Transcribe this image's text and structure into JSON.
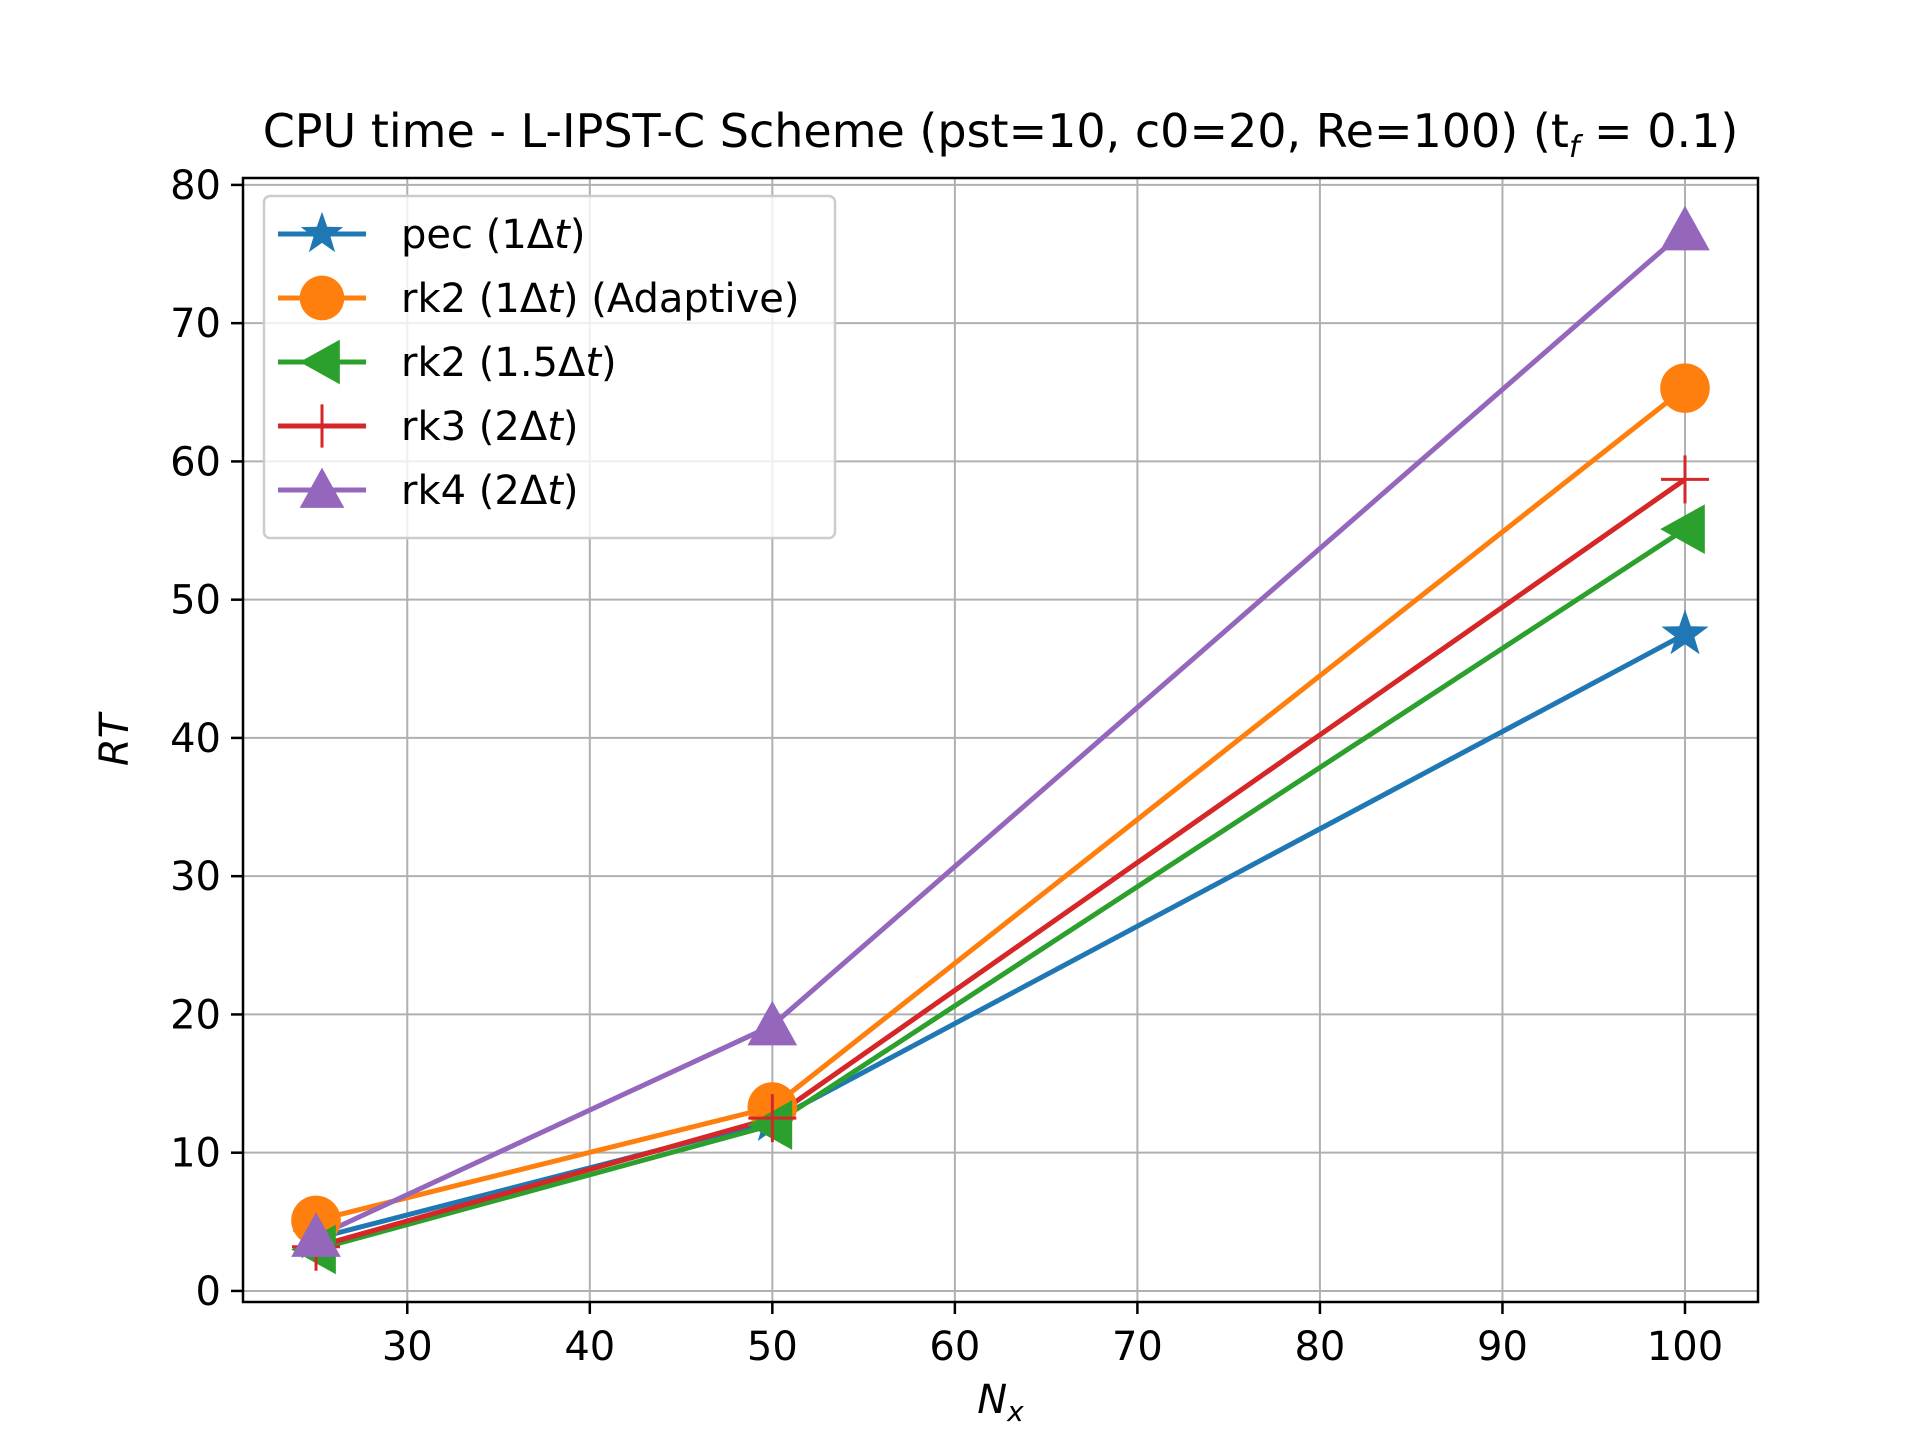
{
  "chart_data": {
    "type": "line",
    "title": "CPU time - L-IPST-C Scheme (pst=10, c0=20, Re=100) (t",
    "title_sub": "f",
    "title_tail": " = 0.1)",
    "xlabel": "N",
    "xlabel_sub": "x",
    "ylabel": "RT",
    "xlim": [
      21,
      104
    ],
    "ylim": [
      -0.8,
      80.5
    ],
    "xticks": [
      30,
      40,
      50,
      60,
      70,
      80,
      90,
      100
    ],
    "yticks": [
      0,
      10,
      20,
      30,
      40,
      50,
      60,
      70,
      80
    ],
    "grid": true,
    "legend_position": "upper-left",
    "x": [
      25,
      50,
      100
    ],
    "series": [
      {
        "name": "pec (1Δt)",
        "label_main": "pec (1Δ",
        "label_italic": "t",
        "label_tail": ")",
        "marker": "star",
        "color": "#1f77b4",
        "values": [
          3.8,
          12.3,
          47.5
        ]
      },
      {
        "name": "rk2 (1Δt) (Adaptive)",
        "label_main": "rk2 (1Δ",
        "label_italic": "t",
        "label_tail": ") (Adaptive)",
        "marker": "circle",
        "color": "#ff7f0e",
        "values": [
          5.1,
          13.3,
          65.3
        ]
      },
      {
        "name": "rk2 (1.5Δt)",
        "label_main": "rk2 (1.5Δ",
        "label_italic": "t",
        "label_tail": ")",
        "marker": "triangle-left",
        "color": "#2ca02c",
        "values": [
          3.0,
          12.0,
          55.1
        ]
      },
      {
        "name": "rk3 (2Δt)",
        "label_main": "rk3 (2Δ",
        "label_italic": "t",
        "label_tail": ")",
        "marker": "plus",
        "color": "#d62728",
        "values": [
          3.2,
          12.5,
          58.7
        ]
      },
      {
        "name": "rk4 (2Δt)",
        "label_main": "rk4 (2Δ",
        "label_italic": "t",
        "label_tail": ")",
        "marker": "triangle-up",
        "color": "#9467bd",
        "values": [
          3.9,
          19.2,
          76.7
        ]
      }
    ]
  }
}
